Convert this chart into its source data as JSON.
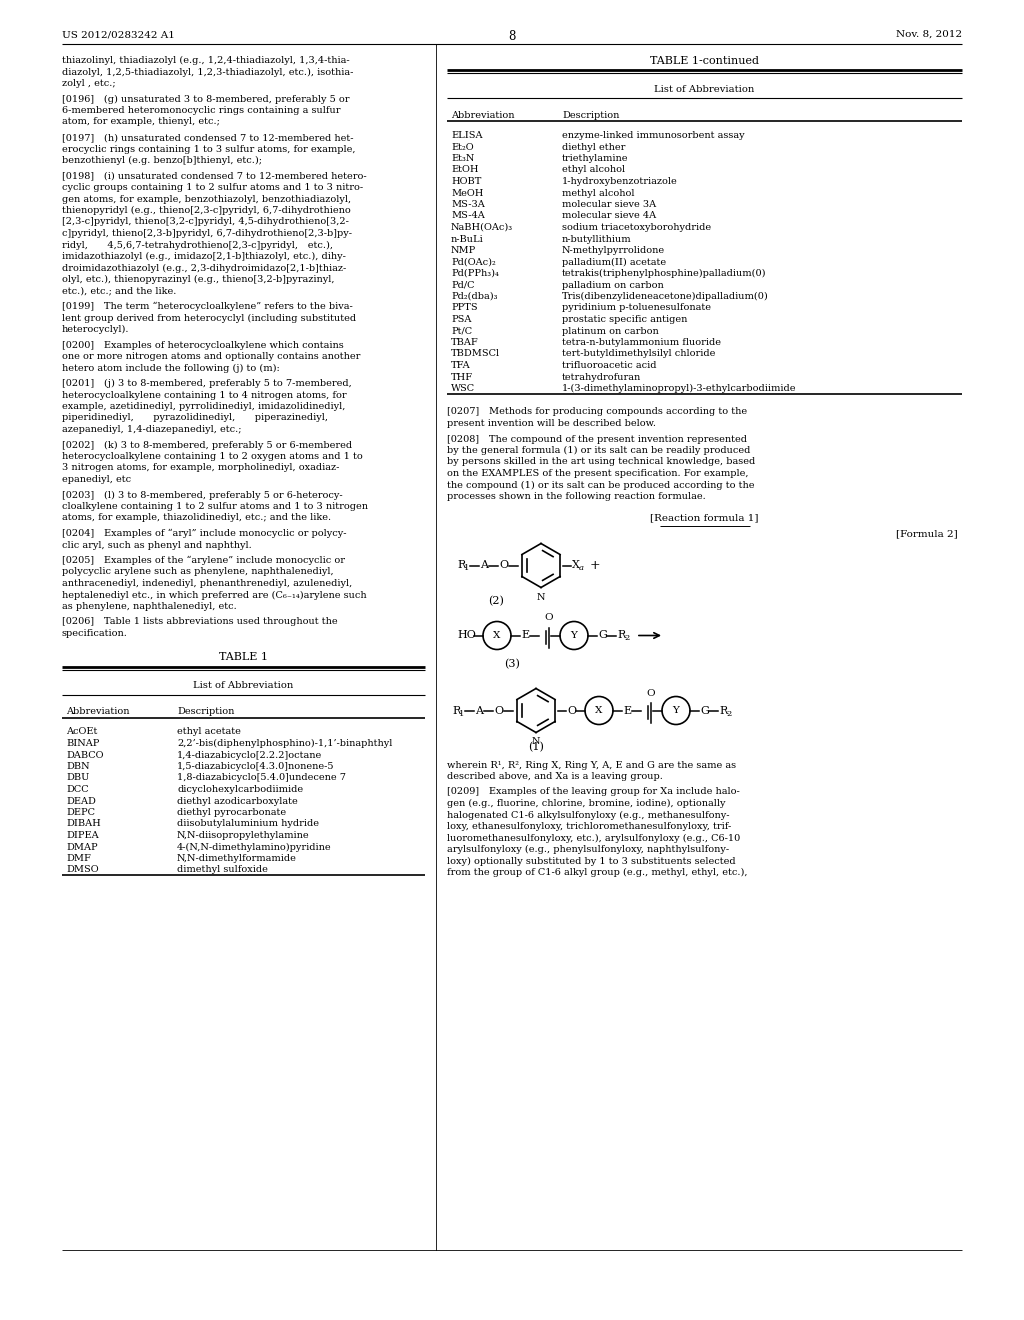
{
  "header_left": "US 2012/0283242 A1",
  "header_right": "Nov. 8, 2012",
  "page_number": "8",
  "bg_color": "#ffffff",
  "table1_title": "TABLE 1",
  "table1_subtitle": "List of Abbreviation",
  "table1_headers": [
    "Abbreviation",
    "Description"
  ],
  "table1_rows_left": [
    [
      "AcOEt",
      "ethyl acetate"
    ],
    [
      "BINAP",
      "2,2’-bis(diphenylphosphino)-1,1’-binaphthyl"
    ],
    [
      "DABCO",
      "1,4-diazabicyclo[2.2.2]octane"
    ],
    [
      "DBN",
      "1,5-diazabicyclo[4.3.0]nonene-5"
    ],
    [
      "DBU",
      "1,8-diazabicyclo[5.4.0]undecene 7"
    ],
    [
      "DCC",
      "dicyclohexylcarbodiimide"
    ],
    [
      "DEAD",
      "diethyl azodicarboxylate"
    ],
    [
      "DEPC",
      "diethyl pyrocarbonate"
    ],
    [
      "DIBAH",
      "diisobutylaluminium hydride"
    ],
    [
      "DIPEA",
      "N,N-diisopropylethylamine"
    ],
    [
      "DMAP",
      "4-(N,N-dimethylamino)pyridine"
    ],
    [
      "DMF",
      "N,N-dimethylformamide"
    ],
    [
      "DMSO",
      "dimethyl sulfoxide"
    ]
  ],
  "table1_continued_title": "TABLE 1-continued",
  "table1_continued_subtitle": "List of Abbreviation",
  "table1_continued_headers": [
    "Abbreviation",
    "Description"
  ],
  "table1_rows_right": [
    [
      "ELISA",
      "enzyme-linked immunosorbent assay"
    ],
    [
      "Et₂O",
      "diethyl ether"
    ],
    [
      "Et₃N",
      "triethylamine"
    ],
    [
      "EtOH",
      "ethyl alcohol"
    ],
    [
      "HOBT",
      "1-hydroxybenzotriazole"
    ],
    [
      "MeOH",
      "methyl alcohol"
    ],
    [
      "MS-3A",
      "molecular sieve 3A"
    ],
    [
      "MS-4A",
      "molecular sieve 4A"
    ],
    [
      "NaBH(OAc)₃",
      "sodium triacetoxyborohydride"
    ],
    [
      "n-BuLi",
      "n-butyllithium"
    ],
    [
      "NMP",
      "N-methylpyrrolidone"
    ],
    [
      "Pd(OAc)₂",
      "palladium(II) acetate"
    ],
    [
      "Pd(PPh₃)₄",
      "tetrakis(triphenylphosphine)palladium(0)"
    ],
    [
      "Pd/C",
      "palladium on carbon"
    ],
    [
      "Pd₂(dba)₃",
      "Tris(dibenzylideneacetone)dipalladium(0)"
    ],
    [
      "PPTS",
      "pyridinium p-toluenesulfonate"
    ],
    [
      "PSA",
      "prostatic specific antigen"
    ],
    [
      "Pt/C",
      "platinum on carbon"
    ],
    [
      "TBAF",
      "tetra-n-butylammonium fluoride"
    ],
    [
      "TBDMSCl",
      "tert-butyldimethylsilyl chloride"
    ],
    [
      "TFA",
      "trifluoroacetic acid"
    ],
    [
      "THF",
      "tetrahydrofuran"
    ],
    [
      "WSC",
      "1-(3-dimethylaminopropyl)-3-ethylcarbodiimide"
    ]
  ],
  "left_paragraphs": [
    "thiazolinyl, thiadiazolyl (e.g., 1,2,4-thiadiazolyl, 1,3,4-thia-\ndiazolyl, 1,2,5-thiadiazolyl, 1,2,3-thiadiazolyl, etc.), isothia-\nzolyl , etc.;",
    "[0196] (g) unsaturated 3 to 8-membered, preferably 5 or\n6-membered heteromonocyclic rings containing a sulfur\natom, for example, thienyl, etc.;",
    "[0197] (h) unsaturated condensed 7 to 12-membered het-\nerocyclic rings containing 1 to 3 sulfur atoms, for example,\nbenzothienyl (e.g. benzo[b]thienyl, etc.);",
    "[0198] (i) unsaturated condensed 7 to 12-membered hetero-\ncyclic groups containing 1 to 2 sulfur atoms and 1 to 3 nitro-\ngen atoms, for example, benzothiazolyl, benzothiadiazolyl,\nthienopyridyl (e.g., thieno[2,3-c]pyridyl, 6,7-dihydrothieno\n[2,3-c]pyridyl, thieno[3,2-c]pyridyl, 4,5-dihydrothieno[3,2-\nc]pyridyl, thieno[2,3-b]pyridyl, 6,7-dihydrothieno[2,3-b]py-\nridyl,  4,5,6,7-tetrahydrothieno[2,3-c]pyridyl, etc.),\nimidazothiazolyl (e.g., imidazo[2,1-b]thiazolyl, etc.), dihy-\ndroimidazothiazolyl (e.g., 2,3-dihydroimidazo[2,1-b]thiaz-\nolyl, etc.), thienopyrazinyl (e.g., thieno[3,2-b]pyrazinyl,\netc.), etc.; and the like.",
    "[0199] The term “heterocycloalkylene” refers to the biva-\nlent group derived from heterocyclyl (including substituted\nheterocyclyl).",
    "[0200] Examples of heterocycloalkylene which contains\none or more nitrogen atoms and optionally contains another\nhetero atom include the following (j) to (m):",
    "[0201] (j) 3 to 8-membered, preferably 5 to 7-membered,\nheterocycloalkylene containing 1 to 4 nitrogen atoms, for\nexample, azetidinediyl, pyrrolidinediyl, imidazolidinediyl,\npiperidinediyl,  pyrazolidinediyl,  piperazinediyl,\nazepanediyl, 1,4-diazepanediyl, etc.;",
    "[0202] (k) 3 to 8-membered, preferably 5 or 6-membered\nheterocycloalkylene containing 1 to 2 oxygen atoms and 1 to\n3 nitrogen atoms, for example, morpholinediyl, oxadiaz-\nepanediyl, etc",
    "[0203] (l) 3 to 8-membered, preferably 5 or 6-heterocy-\ncloalkylene containing 1 to 2 sulfur atoms and 1 to 3 nitrogen\natoms, for example, thiazolidinediyl, etc.; and the like.",
    "[0204] Examples of “aryl” include monocyclic or polycy-\nclic aryl, such as phenyl and naphthyl.",
    "[0205] Examples of the “arylene” include monocyclic or\npolycyclic arylene such as phenylene, naphthalenediyl,\nanthracenediyl, indenediyl, phenanthrenediyl, azulenediyl,\nheptalenediyl etc., in which preferred are (C₆₋₁₄)arylene such\nas phenylene, naphthalenediyl, etc.",
    "[0206] Table 1 lists abbreviations used throughout the\nspecification."
  ],
  "right_upper_paragraphs": [
    "[0207] Methods for producing compounds according to the\npresent invention will be described below.",
    "[0208] The compound of the present invention represented\nby the general formula (1) or its salt can be readily produced\nby persons skilled in the art using technical knowledge, based\non the EXAMPLES of the present specification. For example,\nthe compound (1) or its salt can be produced according to the\nprocesses shown in the following reaction formulae."
  ],
  "reaction_formula_label": "[Reaction formula 1]",
  "formula2_label": "[Formula 2]",
  "wherein_lines": [
    "wherein R¹, R², Ring X, Ring Y, A, E and G are the same as",
    "described above, and Xa is a leaving group."
  ],
  "para_0209_lines": [
    "[0209] Examples of the leaving group for Xa include halo-",
    "gen (e.g., fluorine, chlorine, bromine, iodine), optionally",
    "halogenated C1-6 alkylsulfonyloxy (e.g., methanesulfony-",
    "loxy, ethanesulfonyloxy, trichloromethanesulfonyloxy, trif-",
    "luoromethanesulfonyloxy, etc.), arylsulfonyloxy (e.g., C6-10",
    "arylsulfonyloxy (e.g., phenylsulfonyloxy, naphthylsulfony-",
    "loxy) optionally substituted by 1 to 3 substituents selected",
    "from the group of C1-6 alkyl group (e.g., methyl, ethyl, etc.),"
  ]
}
